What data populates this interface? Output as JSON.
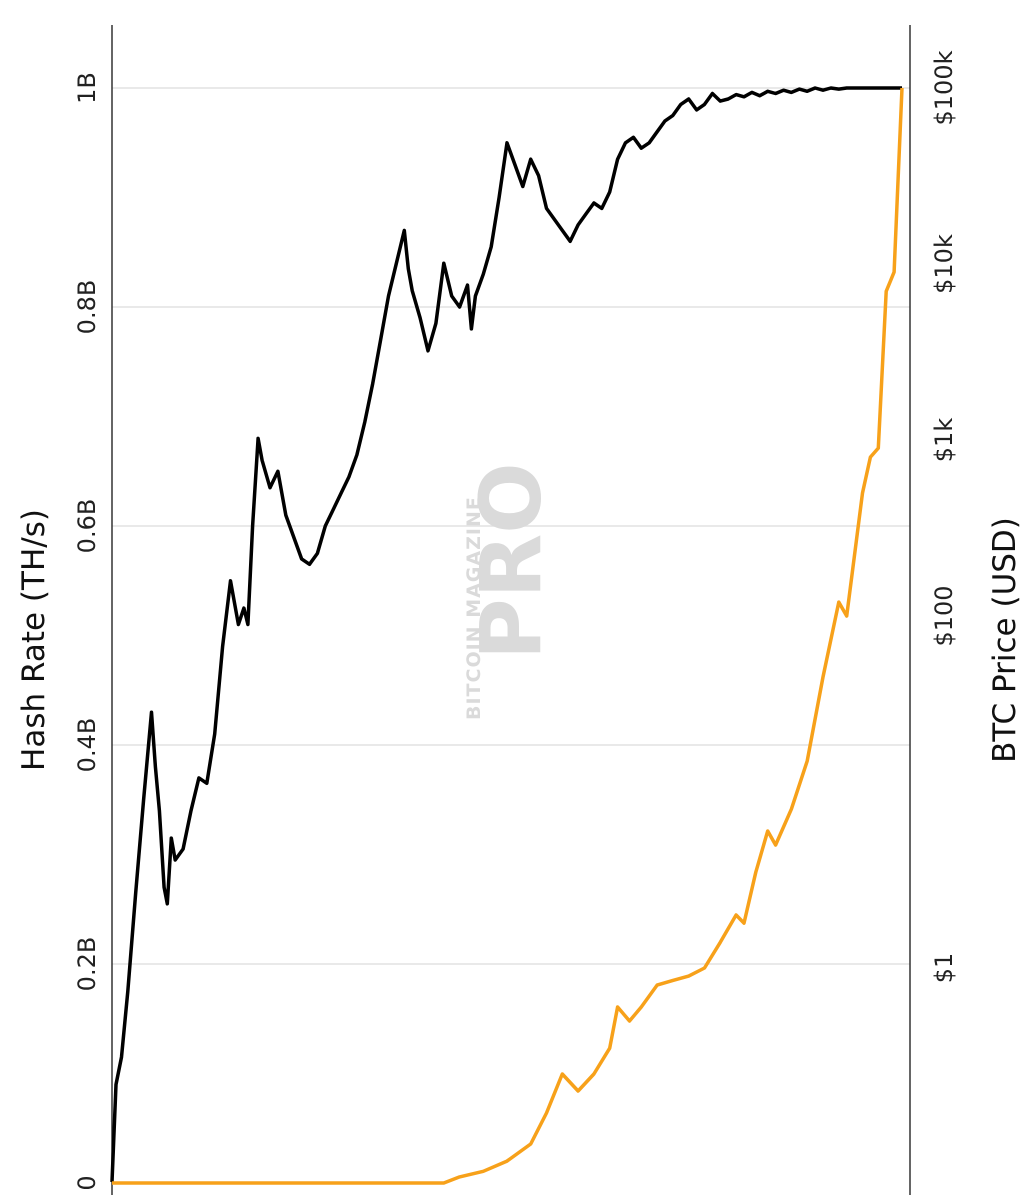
{
  "watermark": {
    "line1": "BITCOIN MAGAZINE",
    "line2": "PRO"
  },
  "colors": {
    "hash_rate": "#000000",
    "price": "#f7a11a",
    "grid": "#e2e2e2",
    "watermark": "#dadada"
  },
  "chart_data": {
    "type": "line",
    "orientation": "rotated 90 degrees clockwise (time runs top to bottom)",
    "title": "",
    "left_axis": {
      "label": "Hash Rate (TH/s)",
      "scale": "linear",
      "range": [
        0,
        1050000000
      ],
      "ticks": [
        {
          "value": 0,
          "label": "0"
        },
        {
          "value": 200000000,
          "label": "0.2B"
        },
        {
          "value": 400000000,
          "label": "0.4B"
        },
        {
          "value": 600000000,
          "label": "0.6B"
        },
        {
          "value": 800000000,
          "label": "0.8B"
        },
        {
          "value": 1000000000,
          "label": "1B"
        }
      ]
    },
    "right_axis": {
      "label": "BTC Price (USD)",
      "scale": "log",
      "ticks": [
        {
          "value": 1,
          "label": "$1"
        },
        {
          "value": 100,
          "label": "$100"
        },
        {
          "value": 1000,
          "label": "$1k"
        },
        {
          "value": 10000,
          "label": "$10k"
        },
        {
          "value": 100000,
          "label": "$100k"
        }
      ]
    },
    "grid": true,
    "legend": "none",
    "series": [
      {
        "axis": "left",
        "color": "#000000",
        "t": [
          0,
          0.005,
          0.012,
          0.02,
          0.03,
          0.04,
          0.05,
          0.055,
          0.06,
          0.066,
          0.07,
          0.075,
          0.08,
          0.09,
          0.1,
          0.11,
          0.12,
          0.13,
          0.14,
          0.15,
          0.16,
          0.167,
          0.172,
          0.178,
          0.185,
          0.19,
          0.2,
          0.21,
          0.22,
          0.23,
          0.24,
          0.25,
          0.26,
          0.27,
          0.28,
          0.29,
          0.3,
          0.31,
          0.32,
          0.33,
          0.34,
          0.35,
          0.36,
          0.37,
          0.375,
          0.38,
          0.39,
          0.4,
          0.41,
          0.42,
          0.43,
          0.44,
          0.45,
          0.455,
          0.46,
          0.47,
          0.48,
          0.49,
          0.5,
          0.51,
          0.52,
          0.53,
          0.54,
          0.55,
          0.56,
          0.57,
          0.58,
          0.59,
          0.6,
          0.61,
          0.62,
          0.63,
          0.64,
          0.65,
          0.66,
          0.67,
          0.68,
          0.69,
          0.7,
          0.71,
          0.72,
          0.73,
          0.74,
          0.75,
          0.76,
          0.77,
          0.78,
          0.79,
          0.8,
          0.81,
          0.82,
          0.83,
          0.84,
          0.85,
          0.86,
          0.87,
          0.88,
          0.89,
          0.9,
          0.91,
          0.92,
          0.93,
          0.94,
          0.95,
          0.96,
          0.97,
          0.98,
          0.99,
          1.0
        ],
        "values": [
          1000000,
          90000000,
          115000000,
          175000000,
          265000000,
          350000000,
          430000000,
          380000000,
          340000000,
          270000000,
          255000000,
          315000000,
          295000000,
          305000000,
          340000000,
          370000000,
          365000000,
          410000000,
          490000000,
          550000000,
          510000000,
          525000000,
          510000000,
          600000000,
          680000000,
          660000000,
          635000000,
          650000000,
          610000000,
          590000000,
          570000000,
          565000000,
          575000000,
          600000000,
          615000000,
          630000000,
          645000000,
          665000000,
          695000000,
          730000000,
          770000000,
          810000000,
          840000000,
          870000000,
          835000000,
          815000000,
          790000000,
          760000000,
          785000000,
          840000000,
          810000000,
          800000000,
          820000000,
          780000000,
          810000000,
          830000000,
          855000000,
          900000000,
          950000000,
          930000000,
          910000000,
          935000000,
          920000000,
          890000000,
          880000000,
          870000000,
          860000000,
          875000000,
          885000000,
          895000000,
          890000000,
          905000000,
          935000000,
          950000000,
          955000000,
          945000000,
          950000000,
          960000000,
          970000000,
          975000000,
          985000000,
          990000000,
          980000000,
          985000000,
          995000000,
          988000000,
          990000000,
          994000000,
          992000000,
          996000000,
          993000000,
          997000000,
          995000000,
          998000000,
          996000000,
          999000000,
          997000000,
          1000000000,
          998000000,
          1000000000,
          999000000,
          1000000000,
          1000000000,
          1000000000,
          1000000000,
          1000000000,
          1000000000,
          1000000000,
          1000000000
        ]
      },
      {
        "axis": "right",
        "color": "#f7a11a",
        "t": [
          0,
          0.05,
          0.1,
          0.15,
          0.2,
          0.24,
          0.27,
          0.29,
          0.31,
          0.32,
          0.34,
          0.36,
          0.38,
          0.4,
          0.42,
          0.44,
          0.47,
          0.5,
          0.53,
          0.55,
          0.57,
          0.59,
          0.61,
          0.63,
          0.64,
          0.655,
          0.67,
          0.69,
          0.71,
          0.73,
          0.75,
          0.77,
          0.79,
          0.8,
          0.815,
          0.83,
          0.84,
          0.86,
          0.88,
          0.9,
          0.92,
          0.93,
          0.95,
          0.96,
          0.97,
          0.98,
          0.99,
          1.0
        ],
        "values": [
          0.06,
          0.06,
          0.06,
          0.06,
          0.06,
          0.06,
          0.06,
          0.06,
          0.06,
          0.06,
          0.06,
          0.06,
          0.06,
          0.06,
          0.06,
          0.065,
          0.07,
          0.08,
          0.1,
          0.15,
          0.25,
          0.2,
          0.25,
          0.35,
          0.6,
          0.5,
          0.6,
          0.8,
          0.85,
          0.9,
          1.0,
          1.4,
          2.0,
          1.8,
          3.5,
          6,
          5,
          8,
          15,
          45,
          120,
          100,
          500,
          800,
          900,
          7000,
          9000,
          100000
        ]
      }
    ]
  }
}
